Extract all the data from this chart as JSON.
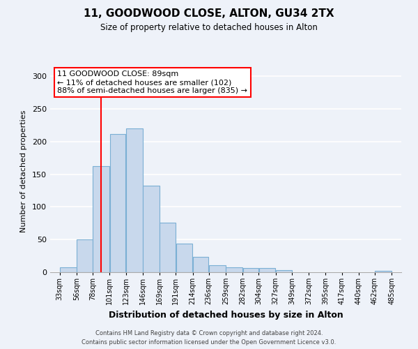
{
  "title": "11, GOODWOOD CLOSE, ALTON, GU34 2TX",
  "subtitle": "Size of property relative to detached houses in Alton",
  "xlabel": "Distribution of detached houses by size in Alton",
  "ylabel": "Number of detached properties",
  "bar_color": "#c8d8ec",
  "bar_edge_color": "#7aafd4",
  "bar_left_edges": [
    33,
    56,
    78,
    101,
    123,
    146,
    169,
    191,
    214,
    236,
    259,
    282,
    304,
    327,
    349,
    372,
    395,
    417,
    440,
    462
  ],
  "bar_widths": [
    23,
    22,
    23,
    22,
    23,
    23,
    22,
    23,
    22,
    23,
    23,
    22,
    23,
    22,
    23,
    23,
    22,
    23,
    22,
    23
  ],
  "bar_heights": [
    7,
    50,
    163,
    212,
    220,
    133,
    76,
    44,
    23,
    11,
    8,
    6,
    6,
    3,
    0,
    0,
    0,
    0,
    0,
    2
  ],
  "x_tick_labels": [
    "33sqm",
    "56sqm",
    "78sqm",
    "101sqm",
    "123sqm",
    "146sqm",
    "169sqm",
    "191sqm",
    "214sqm",
    "236sqm",
    "259sqm",
    "282sqm",
    "304sqm",
    "327sqm",
    "349sqm",
    "372sqm",
    "395sqm",
    "417sqm",
    "440sqm",
    "462sqm",
    "485sqm"
  ],
  "x_tick_positions": [
    33,
    56,
    78,
    101,
    123,
    146,
    169,
    191,
    214,
    236,
    259,
    282,
    304,
    327,
    349,
    372,
    395,
    417,
    440,
    462,
    485
  ],
  "ylim": [
    0,
    310
  ],
  "yticks": [
    0,
    50,
    100,
    150,
    200,
    250,
    300
  ],
  "red_line_x": 89,
  "annotation_title": "11 GOODWOOD CLOSE: 89sqm",
  "annotation_line1": "← 11% of detached houses are smaller (102)",
  "annotation_line2": "88% of semi-detached houses are larger (835) →",
  "background_color": "#eef2f9",
  "grid_color": "#ffffff",
  "footer_line1": "Contains HM Land Registry data © Crown copyright and database right 2024.",
  "footer_line2": "Contains public sector information licensed under the Open Government Licence v3.0."
}
